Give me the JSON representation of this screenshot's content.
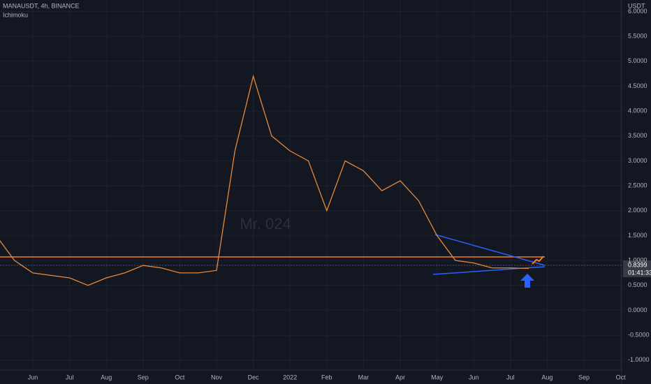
{
  "chart_data": {
    "type": "line",
    "title": "MANAUSDT, 4h, BINANCE",
    "indicator": "Ichimoku",
    "y_axis_label": "USDT",
    "watermark": "Mr. 024",
    "x_tick_labels": [
      "Jun",
      "Jul",
      "Aug",
      "Sep",
      "Oct",
      "Nov",
      "Dec",
      "2022",
      "Feb",
      "Mar",
      "Apr",
      "May",
      "Jun",
      "Jul",
      "Aug",
      "Sep",
      "Oct"
    ],
    "series": [
      {
        "name": "MANAUSDT",
        "color": "#e8893a",
        "values": [
          1.5,
          1.0,
          0.75,
          0.7,
          0.65,
          0.5,
          0.65,
          0.75,
          0.9,
          0.85,
          0.75,
          0.75,
          0.8,
          3.2,
          4.7,
          3.5,
          3.2,
          3.0,
          2.0,
          3.0,
          2.8,
          2.4,
          2.6,
          2.2,
          1.5,
          1.0,
          0.95,
          0.85,
          0.85,
          0.84
        ]
      }
    ],
    "last_price": 0.8399,
    "countdown": "01:41:33",
    "ylim": [
      -1.2,
      6.23
    ],
    "yticks": [
      {
        "value": 6,
        "label": "6.0000"
      },
      {
        "value": 5.5,
        "label": "5.5000"
      },
      {
        "value": 5,
        "label": "5.0000"
      },
      {
        "value": 4.5,
        "label": "4.5000"
      },
      {
        "value": 4,
        "label": "4.0000"
      },
      {
        "value": 3.5,
        "label": "3.5000"
      },
      {
        "value": 3,
        "label": "3.0000"
      },
      {
        "value": 2.5,
        "label": "2.5000"
      },
      {
        "value": 2,
        "label": "2.0000"
      },
      {
        "value": 1.5,
        "label": "1.5000"
      },
      {
        "value": 1,
        "label": "1.0000"
      },
      {
        "value": 0.5,
        "label": "0.5000"
      },
      {
        "value": 0,
        "label": "0.0000"
      },
      {
        "value": -0.5,
        "label": "-0.5000"
      },
      {
        "value": -1,
        "label": "-1.0000"
      }
    ],
    "grid": true
  }
}
